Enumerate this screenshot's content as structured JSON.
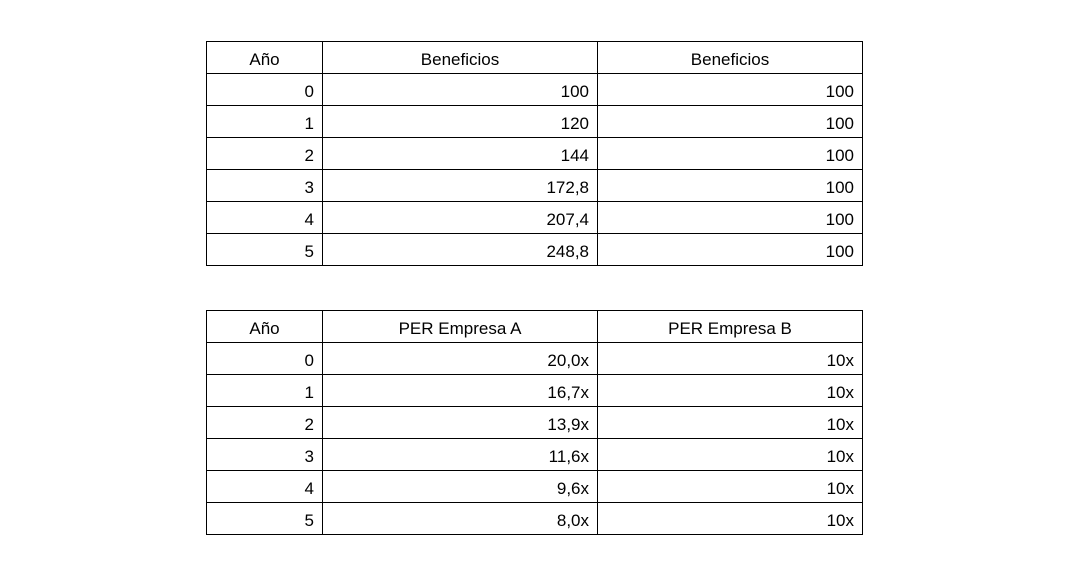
{
  "profits_table": {
    "headers": [
      "Año",
      "Beneficios",
      "Beneficios"
    ],
    "rows": [
      [
        "0",
        "100",
        "100"
      ],
      [
        "1",
        "120",
        "100"
      ],
      [
        "2",
        "144",
        "100"
      ],
      [
        "3",
        "172,8",
        "100"
      ],
      [
        "4",
        "207,4",
        "100"
      ],
      [
        "5",
        "248,8",
        "100"
      ]
    ]
  },
  "per_table": {
    "headers": [
      "Año",
      "PER Empresa A",
      "PER Empresa B"
    ],
    "rows": [
      [
        "0",
        "20,0x",
        "10x"
      ],
      [
        "1",
        "16,7x",
        "10x"
      ],
      [
        "2",
        "13,9x",
        "10x"
      ],
      [
        "3",
        "11,6x",
        "10x"
      ],
      [
        "4",
        "9,6x",
        "10x"
      ],
      [
        "5",
        "8,0x",
        "10x"
      ]
    ]
  }
}
